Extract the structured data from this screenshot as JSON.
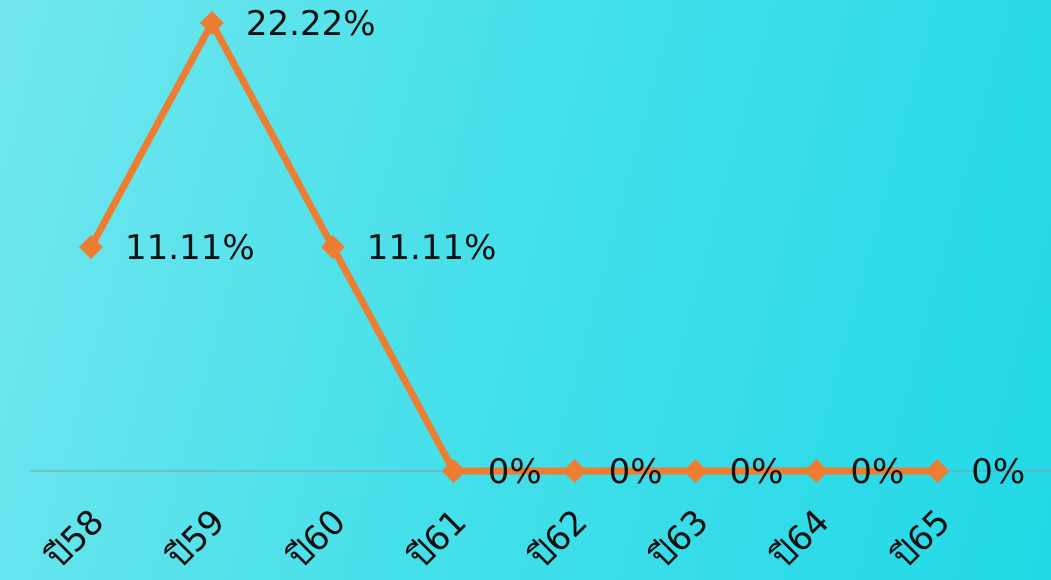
{
  "chart_data": {
    "type": "line",
    "categories": [
      "ปี58",
      "ปี59",
      "ปี60",
      "ปี61",
      "ปี62",
      "ปี63",
      "ปี64",
      "ปี65"
    ],
    "series": [
      {
        "values": [
          11.11,
          22.22,
          11.11,
          0,
          0,
          0,
          0,
          0
        ],
        "labels": [
          "11.11%",
          "22.22%",
          "11.11%",
          "0%",
          "0%",
          "0%",
          "0%",
          "0%"
        ],
        "color": "#ed7d31"
      }
    ],
    "ylim": [
      0,
      22.22
    ],
    "grid": false,
    "legend": "none",
    "marker": "diamond",
    "axis_color": "#8a9aa0",
    "background": [
      "#73e6ee",
      "#22d8e6"
    ]
  }
}
